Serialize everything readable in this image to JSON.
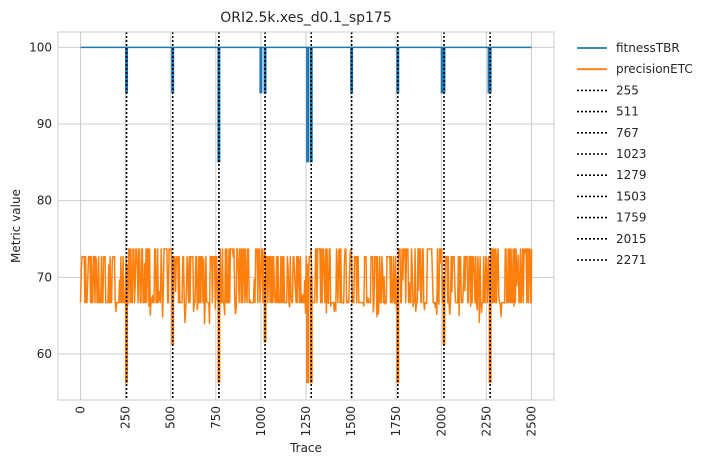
{
  "chart_data": {
    "type": "line",
    "title": "ORI2.5k.xes_d0.1_sp175",
    "xlabel": "Trace",
    "ylabel": "Metric value",
    "xlim": [
      -125,
      2625
    ],
    "ylim": [
      54,
      102
    ],
    "xticks": [
      0,
      250,
      500,
      750,
      1000,
      1250,
      1500,
      1750,
      2000,
      2250,
      2500
    ],
    "yticks": [
      60,
      70,
      80,
      90,
      100
    ],
    "grid": true,
    "legend_position": "outside-right",
    "series": [
      {
        "name": "fitnessTBR",
        "color": "#1f77b4",
        "baseline": 100,
        "x_range": [
          0,
          2500
        ],
        "dips": [
          {
            "x": 255,
            "min": 94
          },
          {
            "x": 511,
            "min": 94
          },
          {
            "x": 767,
            "min": 85
          },
          {
            "x": 1000,
            "min": 94
          },
          {
            "x": 1023,
            "min": 94
          },
          {
            "x": 1259,
            "min": 85
          },
          {
            "x": 1279,
            "min": 85
          },
          {
            "x": 1503,
            "min": 94
          },
          {
            "x": 1759,
            "min": 94
          },
          {
            "x": 2005,
            "min": 94
          },
          {
            "x": 2015,
            "min": 94
          },
          {
            "x": 2265,
            "min": 94
          },
          {
            "x": 2271,
            "min": 94
          }
        ]
      },
      {
        "name": "precisionETC",
        "color": "#ff7f0e",
        "x_range": [
          0,
          2500
        ],
        "segments": [
          {
            "x": [
              0,
              255
            ],
            "low": 66.7,
            "high": 72.7,
            "min": 63.7
          },
          {
            "x": [
              255,
              511
            ],
            "low": 66.7,
            "high": 73.7,
            "min": 64.8
          },
          {
            "x": [
              511,
              767
            ],
            "low": 66.7,
            "high": 72.7,
            "min": 63.7
          },
          {
            "x": [
              767,
              1023
            ],
            "low": 66.7,
            "high": 73.7,
            "min": 64.8
          },
          {
            "x": [
              1023,
              1279
            ],
            "low": 66.7,
            "high": 72.7,
            "min": 63.7
          },
          {
            "x": [
              1279,
              1503
            ],
            "low": 66.7,
            "high": 73.7,
            "min": 64.8
          },
          {
            "x": [
              1503,
              1759
            ],
            "low": 66.7,
            "high": 72.7,
            "min": 64.8
          },
          {
            "x": [
              1759,
              2015
            ],
            "low": 66.7,
            "high": 73.7,
            "min": 64.8
          },
          {
            "x": [
              2015,
              2271
            ],
            "low": 66.7,
            "high": 72.7,
            "min": 63.7
          },
          {
            "x": [
              2271,
              2500
            ],
            "low": 66.7,
            "high": 73.7,
            "min": 64.8
          }
        ],
        "dips": [
          {
            "x": 255,
            "min": 56.2
          },
          {
            "x": 511,
            "min": 61.2
          },
          {
            "x": 767,
            "min": 56.2
          },
          {
            "x": 1023,
            "min": 61.5
          },
          {
            "x": 1259,
            "min": 56.2
          },
          {
            "x": 1279,
            "min": 56.2
          },
          {
            "x": 1759,
            "min": 56.2
          },
          {
            "x": 2015,
            "min": 61.2
          },
          {
            "x": 2271,
            "min": 56.2
          }
        ]
      }
    ],
    "vlines": [
      {
        "name": "255",
        "x": 255
      },
      {
        "name": "511",
        "x": 511
      },
      {
        "name": "767",
        "x": 767
      },
      {
        "name": "1023",
        "x": 1023
      },
      {
        "name": "1279",
        "x": 1279
      },
      {
        "name": "1503",
        "x": 1503
      },
      {
        "name": "1759",
        "x": 1759
      },
      {
        "name": "2015",
        "x": 2015
      },
      {
        "name": "2271",
        "x": 2271
      }
    ],
    "vline_color": "#000000"
  }
}
